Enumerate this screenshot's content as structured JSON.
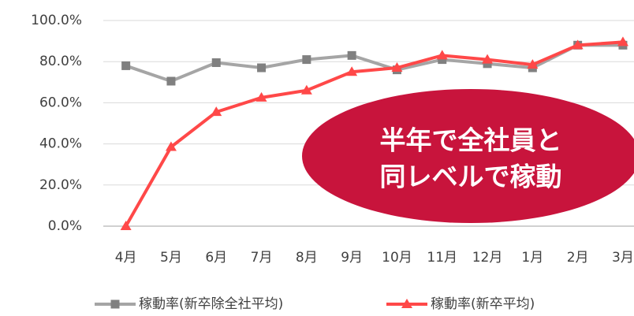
{
  "chart_data": {
    "type": "line",
    "categories": [
      "4月",
      "5月",
      "6月",
      "7月",
      "8月",
      "9月",
      "10月",
      "11月",
      "12月",
      "1月",
      "2月",
      "3月"
    ],
    "series": [
      {
        "name": "稼動率(新卒除全社平均)",
        "color": "#a5a5a5",
        "marker": "square",
        "values": [
          78,
          70.5,
          79.5,
          77,
          81,
          83,
          76,
          81,
          79,
          77,
          88,
          88
        ]
      },
      {
        "name": "稼動率(新卒平均)",
        "color": "#ff4848",
        "marker": "triangle",
        "values": [
          0,
          38.5,
          55.5,
          62.5,
          66,
          75,
          77,
          83,
          81,
          78.5,
          88,
          89.5
        ]
      }
    ],
    "ylim": [
      0,
      100
    ],
    "yticks": [
      {
        "value": 0,
        "label": "0.0%"
      },
      {
        "value": 20,
        "label": "20.0%"
      },
      {
        "value": 40,
        "label": "40.0%"
      },
      {
        "value": 60,
        "label": "60.0%"
      },
      {
        "value": 80,
        "label": "80.0%"
      },
      {
        "value": 100,
        "label": "100.0%"
      }
    ],
    "grid": true,
    "legend": "bottom",
    "annotation": {
      "lines": [
        "半年で全社員と",
        "同レベルで稼動"
      ],
      "color": "#c8143c"
    }
  }
}
